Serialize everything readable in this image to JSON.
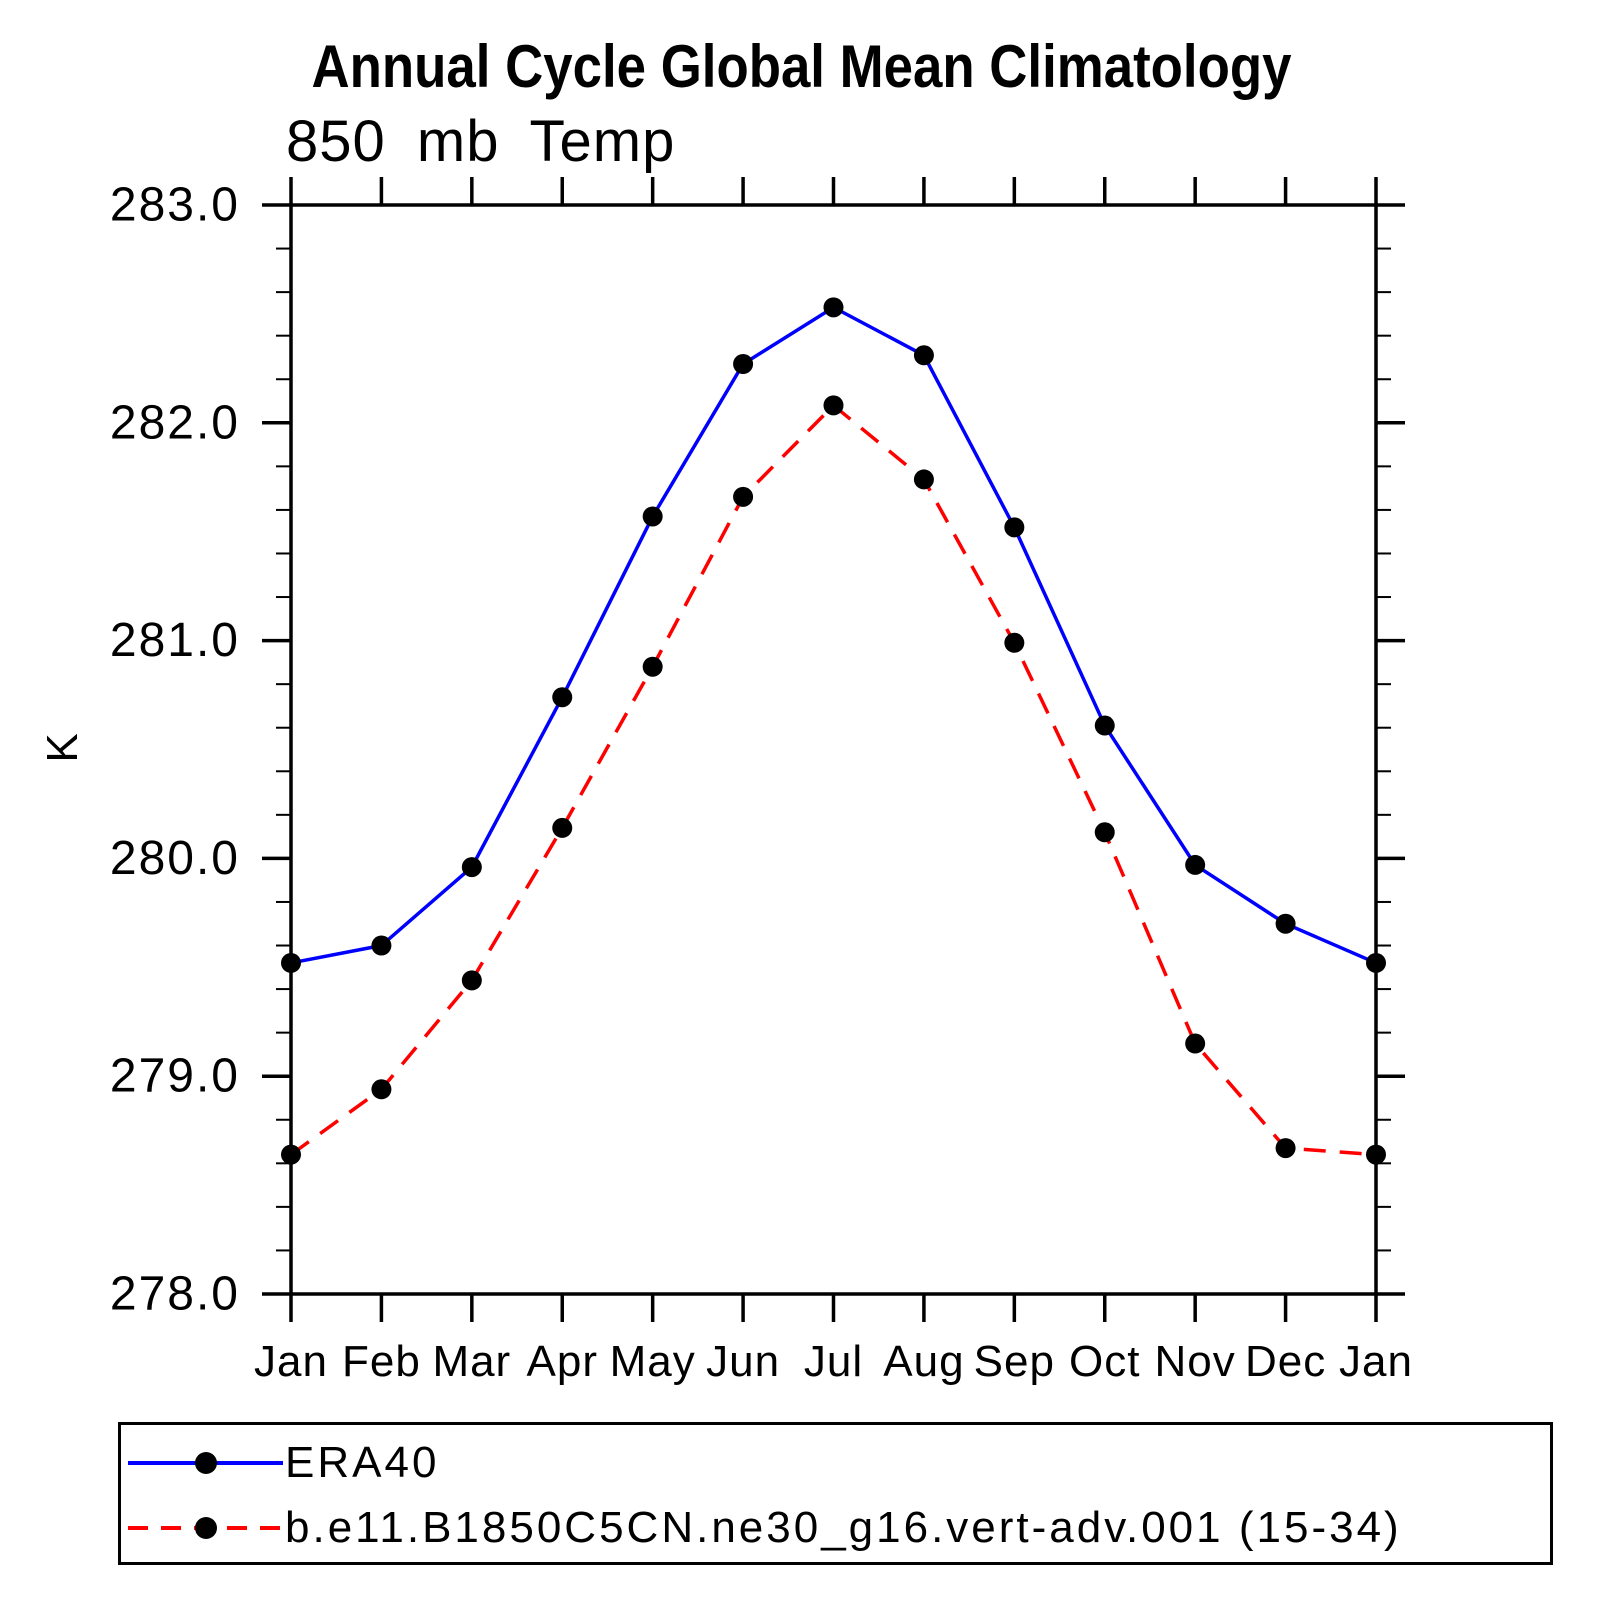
{
  "page": {
    "background_color": "#ffffff",
    "text_color": "#000000"
  },
  "chart_data": {
    "type": "line",
    "title": "Annual Cycle Global Mean Climatology",
    "subtitle": "850 mb Temp",
    "xlabel": "",
    "ylabel": "K",
    "categories": [
      "Jan",
      "Feb",
      "Mar",
      "Apr",
      "May",
      "Jun",
      "Jul",
      "Aug",
      "Sep",
      "Oct",
      "Nov",
      "Dec",
      "Jan"
    ],
    "series": [
      {
        "name": "ERA40",
        "color": "#0000ff",
        "line_style": "solid",
        "marker": "circle",
        "marker_color": "#000000",
        "values": [
          279.52,
          279.6,
          279.96,
          280.74,
          281.57,
          282.27,
          282.53,
          282.31,
          281.52,
          280.61,
          279.97,
          279.7,
          279.52
        ]
      },
      {
        "name": "b.e11.B1850C5CN.ne30_g16.vert-adv.001 (15-34)",
        "color": "#ff0000",
        "line_style": "dashed",
        "marker": "circle",
        "marker_color": "#000000",
        "values": [
          278.64,
          278.94,
          279.44,
          280.14,
          280.88,
          281.66,
          282.08,
          281.74,
          280.99,
          280.12,
          279.15,
          278.67,
          278.64
        ]
      }
    ],
    "ylim": [
      278.0,
      283.0
    ],
    "y_tick_labels": [
      "283.0",
      "282.0",
      "281.0",
      "280.0",
      "279.0",
      "278.0"
    ],
    "y_minor_step": 0.2,
    "grid": false,
    "legend_position": "bottom",
    "axis_color": "#000000"
  }
}
